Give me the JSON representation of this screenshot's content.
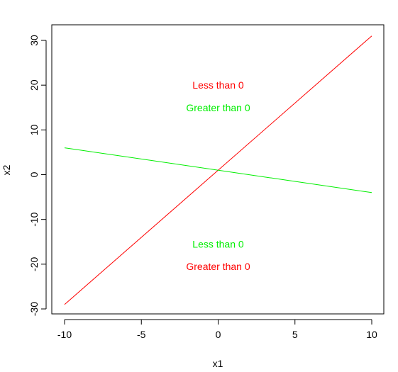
{
  "chart_data": {
    "type": "line",
    "title": "",
    "xlabel": "x1",
    "ylabel": "x2",
    "xlim": [
      -10,
      10
    ],
    "ylim": [
      -30,
      30
    ],
    "xticks": [
      -10,
      -5,
      0,
      5,
      10
    ],
    "yticks": [
      -30,
      -20,
      -10,
      0,
      10,
      20,
      30
    ],
    "xtick_labels": [
      "-10",
      "-5",
      "0",
      "5",
      "10"
    ],
    "ytick_labels": [
      "-30",
      "-20",
      "-10",
      "0",
      "10",
      "20",
      "30"
    ],
    "grid": false,
    "legend": "none",
    "series": [
      {
        "color": "#ff0000",
        "x": [
          -10,
          10
        ],
        "y": [
          -29,
          31
        ]
      },
      {
        "color": "#00ee00",
        "x": [
          -10,
          10
        ],
        "y": [
          6,
          -4
        ]
      }
    ],
    "annotations": [
      {
        "text": "Less than 0",
        "x": 0,
        "y": 20,
        "color": "#ff0000"
      },
      {
        "text": "Greater than 0",
        "x": 0,
        "y": 15,
        "color": "#00ee00"
      },
      {
        "text": "Less than 0",
        "x": 0,
        "y": -15.5,
        "color": "#00ee00"
      },
      {
        "text": "Greater than 0",
        "x": 0,
        "y": -20.5,
        "color": "#ff0000"
      }
    ]
  }
}
